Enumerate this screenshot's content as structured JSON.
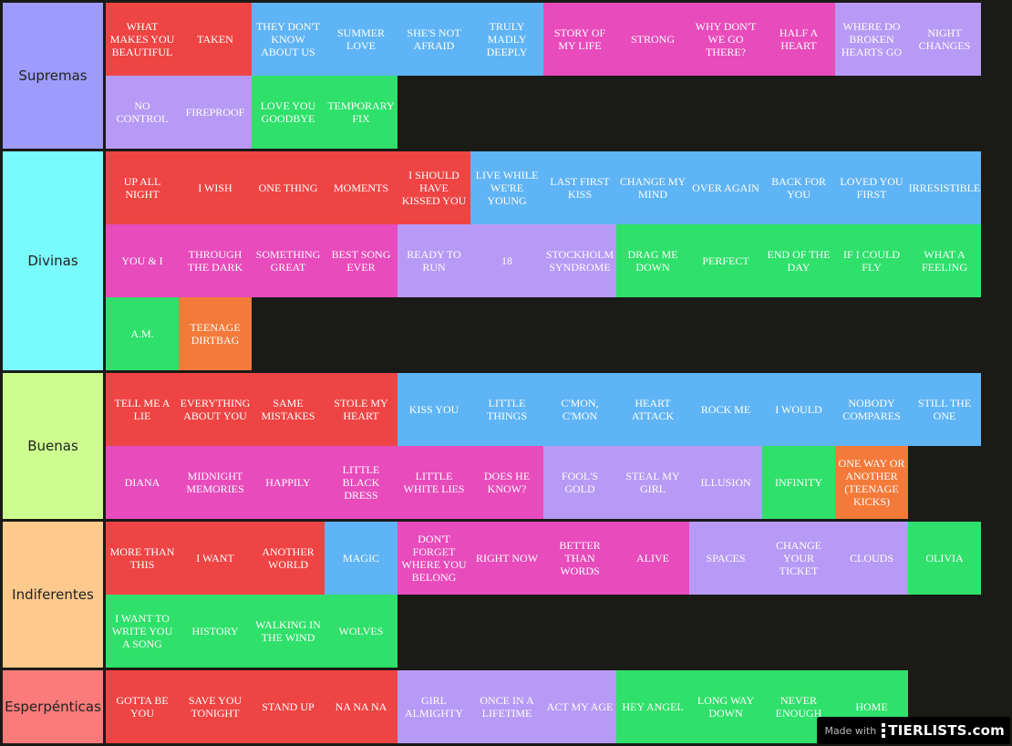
{
  "colors": {
    "red": "#ef4444",
    "blue": "#5fb4f5",
    "pink": "#e84bbb",
    "purple": "#b79af5",
    "green": "#2fe06a",
    "orange": "#f47a3a",
    "background": "#1a1a17"
  },
  "tiers": [
    {
      "label": "Supremas",
      "color": "#9d9bfb",
      "rows": 2,
      "items": [
        {
          "text": "WHAT MAKES YOU BEAUTIFUL",
          "color": "red"
        },
        {
          "text": "TAKEN",
          "color": "red"
        },
        {
          "text": "THEY DON'T KNOW ABOUT US",
          "color": "blue"
        },
        {
          "text": "SUMMER LOVE",
          "color": "blue"
        },
        {
          "text": "SHE'S NOT AFRAID",
          "color": "blue"
        },
        {
          "text": "TRULY MADLY DEEPLY",
          "color": "blue"
        },
        {
          "text": "STORY OF MY LIFE",
          "color": "pink"
        },
        {
          "text": "STRONG",
          "color": "pink"
        },
        {
          "text": "WHY DON'T WE GO THERE?",
          "color": "pink"
        },
        {
          "text": "HALF A HEART",
          "color": "pink"
        },
        {
          "text": "WHERE DO BROKEN HEARTS GO",
          "color": "purple"
        },
        {
          "text": "NIGHT CHANGES",
          "color": "purple"
        },
        {
          "text": "NO CONTROL",
          "color": "purple"
        },
        {
          "text": "FIREPROOF",
          "color": "purple"
        },
        {
          "text": "LOVE YOU GOODBYE",
          "color": "green"
        },
        {
          "text": "TEMPORARY FIX",
          "color": "green"
        }
      ]
    },
    {
      "label": "Divinas",
      "color": "#79fbfd",
      "rows": 3,
      "items": [
        {
          "text": "UP ALL NIGHT",
          "color": "red"
        },
        {
          "text": "I WISH",
          "color": "red"
        },
        {
          "text": "ONE THING",
          "color": "red"
        },
        {
          "text": "MOMENTS",
          "color": "red"
        },
        {
          "text": "I SHOULD HAVE KISSED YOU",
          "color": "red"
        },
        {
          "text": "LIVE WHILE WE'RE YOUNG",
          "color": "blue"
        },
        {
          "text": "LAST FIRST KISS",
          "color": "blue"
        },
        {
          "text": "CHANGE MY MIND",
          "color": "blue"
        },
        {
          "text": "OVER AGAIN",
          "color": "blue"
        },
        {
          "text": "BACK FOR YOU",
          "color": "blue"
        },
        {
          "text": "LOVED YOU FIRST",
          "color": "blue"
        },
        {
          "text": "IRRESISTIBLE",
          "color": "blue"
        },
        {
          "text": "YOU & I",
          "color": "pink"
        },
        {
          "text": "THROUGH THE DARK",
          "color": "pink"
        },
        {
          "text": "SOMETHING GREAT",
          "color": "pink"
        },
        {
          "text": "BEST SONG EVER",
          "color": "pink"
        },
        {
          "text": "READY TO RUN",
          "color": "purple"
        },
        {
          "text": "18",
          "color": "purple"
        },
        {
          "text": "STOCKHOLM SYNDROME",
          "color": "purple"
        },
        {
          "text": "DRAG ME DOWN",
          "color": "green"
        },
        {
          "text": "PERFECT",
          "color": "green"
        },
        {
          "text": "END OF THE DAY",
          "color": "green"
        },
        {
          "text": "IF I COULD FLY",
          "color": "green"
        },
        {
          "text": "WHAT A FEELING",
          "color": "green"
        },
        {
          "text": "A.M.",
          "color": "green"
        },
        {
          "text": "TEENAGE DIRTBAG",
          "color": "orange"
        }
      ]
    },
    {
      "label": "Buenas",
      "color": "#cdfd8f",
      "rows": 2,
      "items": [
        {
          "text": "TELL ME A LIE",
          "color": "red"
        },
        {
          "text": "EVERYTHING ABOUT YOU",
          "color": "red"
        },
        {
          "text": "SAME MISTAKES",
          "color": "red"
        },
        {
          "text": "STOLE MY HEART",
          "color": "red"
        },
        {
          "text": "KISS YOU",
          "color": "blue"
        },
        {
          "text": "LITTLE THINGS",
          "color": "blue"
        },
        {
          "text": "C'MON, C'MON",
          "color": "blue"
        },
        {
          "text": "HEART ATTACK",
          "color": "blue"
        },
        {
          "text": "ROCK ME",
          "color": "blue"
        },
        {
          "text": "I WOULD",
          "color": "blue"
        },
        {
          "text": "NOBODY COMPARES",
          "color": "blue"
        },
        {
          "text": "STILL THE ONE",
          "color": "blue"
        },
        {
          "text": "DIANA",
          "color": "pink"
        },
        {
          "text": "MIDNIGHT MEMORIES",
          "color": "pink"
        },
        {
          "text": "HAPPILY",
          "color": "pink"
        },
        {
          "text": "LITTLE BLACK DRESS",
          "color": "pink"
        },
        {
          "text": "LITTLE WHITE LIES",
          "color": "pink"
        },
        {
          "text": "DOES HE KNOW?",
          "color": "pink"
        },
        {
          "text": "FOOL'S GOLD",
          "color": "purple"
        },
        {
          "text": "STEAL MY GIRL",
          "color": "purple"
        },
        {
          "text": "ILLUSION",
          "color": "purple"
        },
        {
          "text": "INFINITY",
          "color": "green"
        },
        {
          "text": "ONE WAY OR ANOTHER (TEENAGE KICKS)",
          "color": "orange"
        }
      ]
    },
    {
      "label": "Indiferentes",
      "color": "#fdc98c",
      "rows": 2,
      "items": [
        {
          "text": "MORE THAN THIS",
          "color": "red"
        },
        {
          "text": "I WANT",
          "color": "red"
        },
        {
          "text": "ANOTHER WORLD",
          "color": "red"
        },
        {
          "text": "MAGIC",
          "color": "blue"
        },
        {
          "text": "DON'T FORGET WHERE YOU BELONG",
          "color": "pink"
        },
        {
          "text": "RIGHT NOW",
          "color": "pink"
        },
        {
          "text": "BETTER THAN WORDS",
          "color": "pink"
        },
        {
          "text": "ALIVE",
          "color": "pink"
        },
        {
          "text": "SPACES",
          "color": "purple"
        },
        {
          "text": "CHANGE YOUR TICKET",
          "color": "purple"
        },
        {
          "text": "CLOUDS",
          "color": "purple"
        },
        {
          "text": "OLIVIA",
          "color": "green"
        },
        {
          "text": "I WANT TO WRITE YOU A SONG",
          "color": "green"
        },
        {
          "text": "HISTORY",
          "color": "green"
        },
        {
          "text": "WALKING IN THE WIND",
          "color": "green"
        },
        {
          "text": "WOLVES",
          "color": "green"
        }
      ]
    },
    {
      "label": "Esperpénticas",
      "color": "#fb7a7a",
      "rows": 1,
      "items": [
        {
          "text": "GOTTA BE YOU",
          "color": "red"
        },
        {
          "text": "SAVE YOU TONIGHT",
          "color": "red"
        },
        {
          "text": "STAND UP",
          "color": "red"
        },
        {
          "text": "NA NA NA",
          "color": "red"
        },
        {
          "text": "GIRL ALMIGHTY",
          "color": "purple"
        },
        {
          "text": "ONCE IN A LIFETIME",
          "color": "purple"
        },
        {
          "text": "ACT MY AGE",
          "color": "purple"
        },
        {
          "text": "HEY ANGEL",
          "color": "green"
        },
        {
          "text": "LONG WAY DOWN",
          "color": "green"
        },
        {
          "text": "NEVER ENOUGH",
          "color": "green"
        },
        {
          "text": "HOME",
          "color": "green"
        }
      ]
    }
  ],
  "watermark": {
    "made_with": "Made with",
    "brand": "TIERLISTS.com"
  }
}
